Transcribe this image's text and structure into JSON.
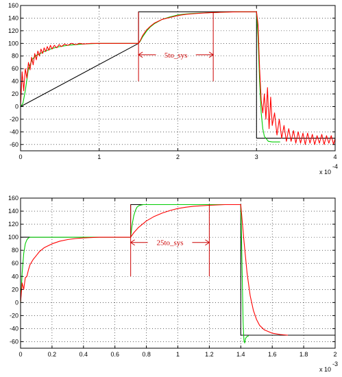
{
  "chart_data": [
    {
      "type": "line",
      "x_multiplier_label": "x 10",
      "x_exponent_label": "-4",
      "xlim": [
        0,
        4
      ],
      "ylim": [
        -70,
        160
      ],
      "grid": true,
      "xticks": [
        "0",
        "1",
        "2",
        "3",
        "4"
      ],
      "yticks": [
        "160",
        "140",
        "120",
        "100",
        "80",
        "60",
        "40",
        "20",
        "0",
        "-20",
        "-40",
        "-60"
      ],
      "annotation": {
        "text": "5to_sys",
        "x_start": 1.5,
        "x_end": 2.45,
        "y": 82,
        "vertical_lines_x": [
          1.5,
          2.45
        ],
        "vertical_lines_y": [
          40,
          150
        ]
      },
      "colors": {
        "reference": "#000000",
        "response_a": "#00cc00",
        "response_b": "#ff0000",
        "annotation": "#cc0000"
      },
      "series": [
        {
          "x": [
            0,
            1.5,
            1.5,
            3.0,
            3.0,
            4.0
          ],
          "y": [
            0,
            100,
            150,
            150,
            -50,
            -50
          ]
        },
        {
          "x": [
            0.0,
            0.03,
            0.06,
            0.1,
            0.15,
            0.2,
            0.3,
            0.4,
            0.5,
            0.6,
            0.8,
            1.0,
            1.2,
            1.5,
            1.52,
            1.55,
            1.6,
            1.65,
            1.7,
            1.8,
            1.9,
            2.0,
            2.1,
            2.2,
            2.4,
            2.6,
            2.8,
            3.0,
            3.02,
            3.04,
            3.06,
            3.08,
            3.1,
            3.15,
            3.2,
            3.3
          ],
          "y": [
            0,
            5,
            25,
            60,
            75,
            81,
            87,
            92,
            95,
            97,
            99,
            100,
            100,
            100,
            103,
            110,
            119,
            126,
            131,
            138,
            142,
            145,
            146.5,
            147.5,
            148.5,
            149.5,
            150,
            150,
            110,
            40,
            -10,
            -35,
            -47,
            -55,
            -56,
            -56
          ]
        },
        {
          "x": [
            0.0,
            0.02,
            0.04,
            0.06,
            0.08,
            0.1,
            0.12,
            0.14,
            0.16,
            0.18,
            0.2,
            0.22,
            0.24,
            0.26,
            0.28,
            0.3,
            0.32,
            0.34,
            0.36,
            0.38,
            0.4,
            0.43,
            0.46,
            0.49,
            0.52,
            0.56,
            0.6,
            0.65,
            0.7,
            0.75,
            0.8,
            0.9,
            1.0,
            1.2,
            1.5,
            1.52,
            1.55,
            1.6,
            1.65,
            1.7,
            1.8,
            1.9,
            2.0,
            2.1,
            2.2,
            2.4,
            2.6,
            2.8,
            3.0,
            3.02,
            3.04,
            3.06,
            3.08,
            3.1,
            3.12,
            3.14,
            3.16,
            3.18,
            3.2,
            3.23,
            3.26,
            3.29,
            3.32,
            3.35,
            3.38,
            3.41,
            3.44,
            3.47,
            3.5,
            3.53,
            3.56,
            3.59,
            3.62,
            3.65,
            3.68,
            3.71,
            3.74,
            3.77,
            3.8,
            3.83,
            3.86,
            3.89,
            3.92,
            3.95,
            3.98,
            4.0
          ],
          "y": [
            0,
            55,
            25,
            60,
            45,
            70,
            58,
            78,
            66,
            84,
            74,
            88,
            80,
            91,
            84,
            93,
            87,
            95,
            89,
            97,
            91,
            97,
            93,
            98,
            95,
            99,
            97,
            100,
            98,
            100,
            99,
            100,
            100,
            100,
            100,
            104,
            112,
            121,
            127,
            132,
            138,
            141,
            144,
            146,
            147,
            148.5,
            149.5,
            150,
            150,
            130,
            60,
            10,
            -10,
            20,
            -20,
            30,
            -35,
            15,
            -30,
            -10,
            -45,
            -20,
            -50,
            -30,
            -55,
            -35,
            -55,
            -38,
            -58,
            -40,
            -58,
            -42,
            -60,
            -42,
            -58,
            -44,
            -60,
            -46,
            -58,
            -44,
            -60,
            -46,
            -58,
            -46,
            -60,
            -50
          ]
        }
      ]
    },
    {
      "type": "line",
      "x_multiplier_label": "x 10",
      "x_exponent_label": "-3",
      "xlim": [
        0,
        2
      ],
      "ylim": [
        -70,
        160
      ],
      "grid": true,
      "xticks": [
        "0",
        "0.2",
        "0.4",
        "0.6",
        "0.8",
        "1",
        "1.2",
        "1.4",
        "1.6",
        "1.8",
        "2"
      ],
      "yticks": [
        "160",
        "140",
        "120",
        "100",
        "80",
        "60",
        "40",
        "20",
        "0",
        "-20",
        "-40",
        "-60"
      ],
      "annotation": {
        "text": "25to_sys",
        "x_start": 0.7,
        "x_end": 1.2,
        "y": 92,
        "vertical_lines_x": [
          0.7,
          1.2
        ],
        "vertical_lines_y": [
          40,
          150
        ]
      },
      "colors": {
        "reference": "#000000",
        "response_a": "#00cc00",
        "response_b": "#ff0000",
        "annotation": "#cc0000"
      },
      "series": [
        {
          "x": [
            0,
            0.7,
            0.7,
            1.4,
            1.4,
            2.0
          ],
          "y": [
            100,
            100,
            150,
            150,
            -50,
            -50
          ]
        },
        {
          "x": [
            0.0,
            0.005,
            0.01,
            0.02,
            0.03,
            0.04,
            0.05,
            0.06,
            0.08,
            0.7,
            0.71,
            0.72,
            0.73,
            0.74,
            0.75,
            0.76,
            0.78,
            0.8,
            1.4,
            1.405,
            1.41,
            1.415,
            1.42,
            1.425,
            1.43,
            1.44,
            1.45
          ],
          "y": [
            0,
            20,
            45,
            75,
            90,
            96,
            99,
            100,
            100,
            100,
            120,
            133,
            141,
            146,
            148,
            149,
            150,
            150,
            150,
            100,
            30,
            -30,
            -58,
            -62,
            -55,
            -52,
            -51
          ]
        },
        {
          "x": [
            0.0,
            0.01,
            0.02,
            0.03,
            0.04,
            0.05,
            0.06,
            0.08,
            0.1,
            0.12,
            0.15,
            0.2,
            0.25,
            0.3,
            0.35,
            0.4,
            0.45,
            0.5,
            0.6,
            0.7,
            0.72,
            0.75,
            0.8,
            0.85,
            0.9,
            0.95,
            1.0,
            1.05,
            1.1,
            1.2,
            1.3,
            1.4,
            1.42,
            1.44,
            1.46,
            1.48,
            1.5,
            1.52,
            1.55,
            1.6,
            1.65,
            1.7
          ],
          "y": [
            0,
            30,
            20,
            38,
            40,
            50,
            58,
            66,
            72,
            78,
            84,
            90,
            94,
            96.5,
            98,
            99,
            99.5,
            100,
            100,
            100,
            107,
            115,
            125,
            132,
            137,
            141,
            144,
            146,
            147.5,
            149,
            150,
            150,
            95,
            45,
            10,
            -12,
            -26,
            -35,
            -42,
            -47,
            -49,
            -50
          ]
        }
      ]
    }
  ]
}
